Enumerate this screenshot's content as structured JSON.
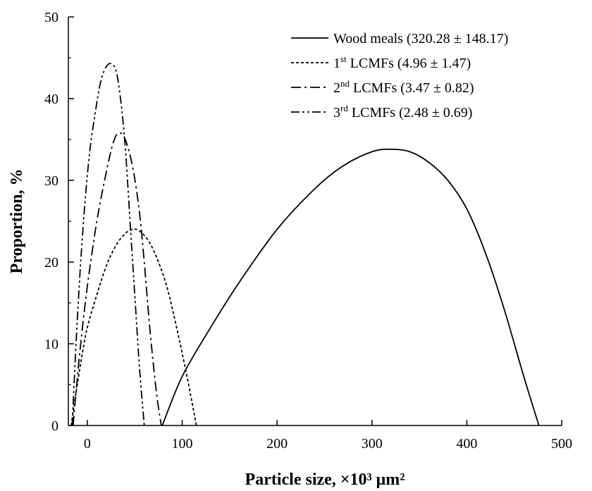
{
  "chart_data": {
    "type": "line",
    "title": "",
    "xlabel": "Particle size, ×10³ μm²",
    "ylabel": "Proportion,  %",
    "xlim": [
      -20,
      500
    ],
    "ylim": [
      0,
      50
    ],
    "x_ticks": [
      0,
      100,
      200,
      300,
      400,
      500
    ],
    "y_ticks": [
      0,
      10,
      20,
      30,
      40,
      50
    ],
    "grid": false,
    "legend_position": "top-right",
    "series": [
      {
        "label_pre": "Wood meals (320.28  ± 148.17)",
        "label_sup": "",
        "label_post": "",
        "style": "solid",
        "points": [
          [
            79,
            0
          ],
          [
            100,
            6
          ],
          [
            130,
            12
          ],
          [
            160,
            17.5
          ],
          [
            200,
            24
          ],
          [
            240,
            29
          ],
          [
            270,
            31.8
          ],
          [
            300,
            33.5
          ],
          [
            320,
            33.8
          ],
          [
            340,
            33.5
          ],
          [
            360,
            32.2
          ],
          [
            380,
            30
          ],
          [
            400,
            26.5
          ],
          [
            420,
            21
          ],
          [
            440,
            14
          ],
          [
            460,
            6
          ],
          [
            476,
            0
          ]
        ]
      },
      {
        "label_pre": "1",
        "label_sup": "st",
        "label_post": " LCMFs (4.96  ± 1.47)",
        "style": "dashed",
        "points": [
          [
            -17,
            0
          ],
          [
            -12,
            4
          ],
          [
            -5,
            9
          ],
          [
            0,
            12
          ],
          [
            10,
            16
          ],
          [
            20,
            19.5
          ],
          [
            30,
            22
          ],
          [
            40,
            23.5
          ],
          [
            48,
            24
          ],
          [
            55,
            23.8
          ],
          [
            65,
            22.5
          ],
          [
            75,
            20
          ],
          [
            85,
            16.5
          ],
          [
            95,
            11.5
          ],
          [
            105,
            6
          ],
          [
            115,
            0
          ]
        ]
      },
      {
        "label_pre": "2",
        "label_sup": "nd",
        "label_post": " LCMFs (3.47  ± 0.82)",
        "style": "dash-dot",
        "points": [
          [
            -15,
            0
          ],
          [
            -12,
            4
          ],
          [
            -7,
            10
          ],
          [
            0,
            17
          ],
          [
            10,
            25
          ],
          [
            20,
            31
          ],
          [
            27,
            34.5
          ],
          [
            33,
            35.8
          ],
          [
            40,
            35
          ],
          [
            48,
            31.5
          ],
          [
            55,
            26
          ],
          [
            60,
            20
          ],
          [
            65,
            13
          ],
          [
            70,
            7
          ],
          [
            74,
            3
          ],
          [
            78,
            0
          ]
        ]
      },
      {
        "label_pre": "3",
        "label_sup": "rd",
        "label_post": " LCMFs (2.48  ± 0.69)",
        "style": "dash-dot-dot",
        "points": [
          [
            -16,
            0
          ],
          [
            -14,
            5
          ],
          [
            -11,
            12
          ],
          [
            -7,
            20
          ],
          [
            -2,
            28
          ],
          [
            3,
            34
          ],
          [
            8,
            38
          ],
          [
            13,
            41.5
          ],
          [
            18,
            43.5
          ],
          [
            24,
            44.3
          ],
          [
            30,
            43.5
          ],
          [
            35,
            40
          ],
          [
            40,
            34
          ],
          [
            45,
            25
          ],
          [
            50,
            16
          ],
          [
            55,
            7
          ],
          [
            60,
            0
          ]
        ]
      }
    ]
  }
}
